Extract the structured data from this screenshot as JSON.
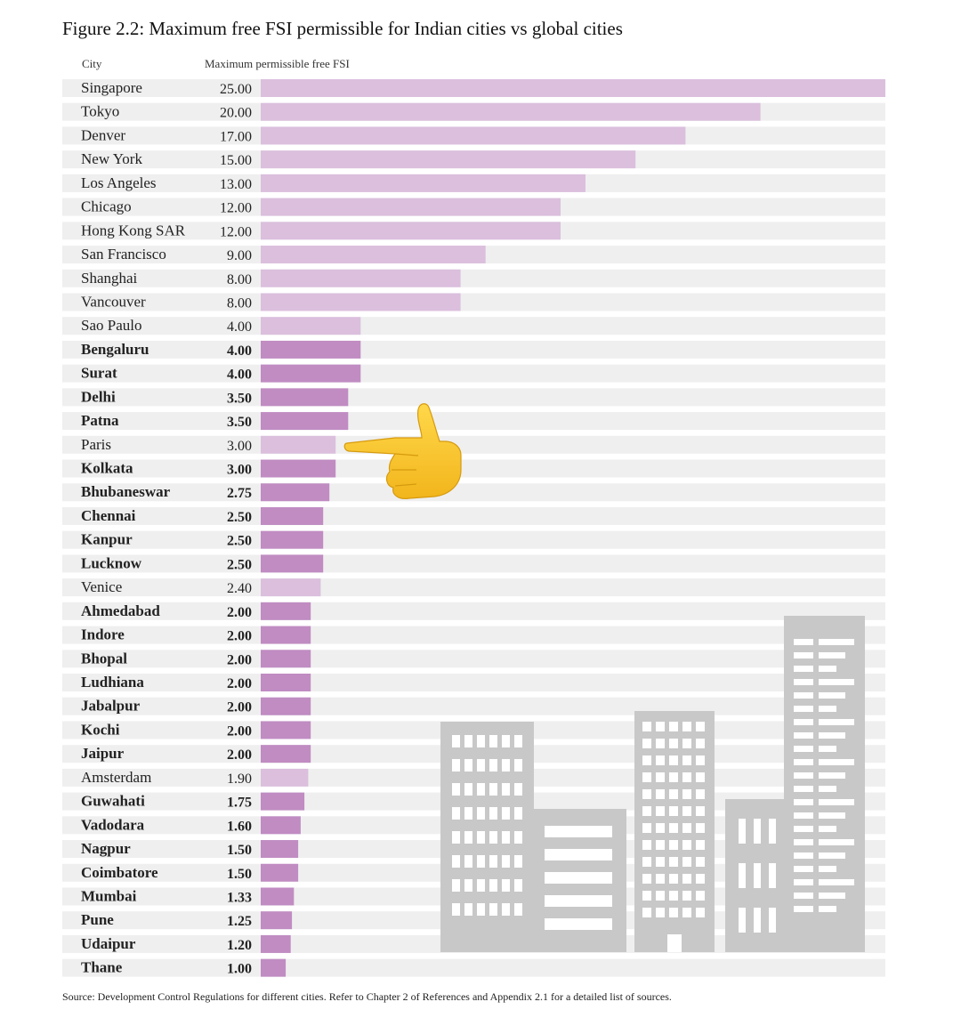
{
  "title": "Figure 2.2: Maximum free FSI permissible for Indian cities vs global cities",
  "columns": {
    "city": "City",
    "fsi": "Maximum permissible free FSI"
  },
  "source": "Source: Development Control Regulations for different cities. Refer to Chapter 2 of References and Appendix 2.1 for a detailed list of sources.",
  "colors": {
    "global_bar": "#dbbfdd",
    "indian_bar": "#c08cc2",
    "row_band": "#efefef",
    "building": "#c8c8c8"
  },
  "decorations": {
    "pointer": "backhand-index-pointing-right-icon",
    "skyline": "city-buildings-illustration"
  },
  "chart_data": {
    "type": "bar",
    "orientation": "horizontal",
    "xlim": [
      0,
      25
    ],
    "grid": false,
    "categories": [
      "Singapore",
      "Tokyo",
      "Denver",
      "New York",
      "Los Angeles",
      "Chicago",
      "Hong Kong SAR",
      "San Francisco",
      "Shanghai",
      "Vancouver",
      "Sao Paulo",
      "Bengaluru",
      "Surat",
      "Delhi",
      "Patna",
      "Paris",
      "Kolkata",
      "Bhubaneswar",
      "Chennai",
      "Kanpur",
      "Lucknow",
      "Venice",
      "Ahmedabad",
      "Indore",
      "Bhopal",
      "Ludhiana",
      "Jabalpur",
      "Kochi",
      "Jaipur",
      "Amsterdam",
      "Guwahati",
      "Vadodara",
      "Nagpur",
      "Coimbatore",
      "Mumbai",
      "Pune",
      "Udaipur",
      "Thane"
    ],
    "values": [
      25,
      20,
      17,
      15,
      13,
      12,
      12,
      9,
      8,
      8,
      4,
      4,
      4,
      3.5,
      3.5,
      3,
      3,
      2.75,
      2.5,
      2.5,
      2.5,
      2.4,
      2,
      2,
      2,
      2,
      2,
      2,
      2,
      1.9,
      1.75,
      1.6,
      1.5,
      1.5,
      1.33,
      1.25,
      1.2,
      1
    ],
    "value_labels": [
      "25.00",
      "20.00",
      "17.00",
      "15.00",
      "13.00",
      "12.00",
      "12.00",
      "9.00",
      "8.00",
      "8.00",
      "4.00",
      "4.00",
      "4.00",
      "3.50",
      "3.50",
      "3.00",
      "3.00",
      "2.75",
      "2.50",
      "2.50",
      "2.50",
      "2.40",
      "2.00",
      "2.00",
      "2.00",
      "2.00",
      "2.00",
      "2.00",
      "2.00",
      "1.90",
      "1.75",
      "1.60",
      "1.50",
      "1.50",
      "1.33",
      "1.25",
      "1.20",
      "1.00"
    ],
    "group": [
      "global",
      "global",
      "global",
      "global",
      "global",
      "global",
      "global",
      "global",
      "global",
      "global",
      "global",
      "indian",
      "indian",
      "indian",
      "indian",
      "global",
      "indian",
      "indian",
      "indian",
      "indian",
      "indian",
      "global",
      "indian",
      "indian",
      "indian",
      "indian",
      "indian",
      "indian",
      "indian",
      "global",
      "indian",
      "indian",
      "indian",
      "indian",
      "indian",
      "indian",
      "indian",
      "indian"
    ]
  }
}
